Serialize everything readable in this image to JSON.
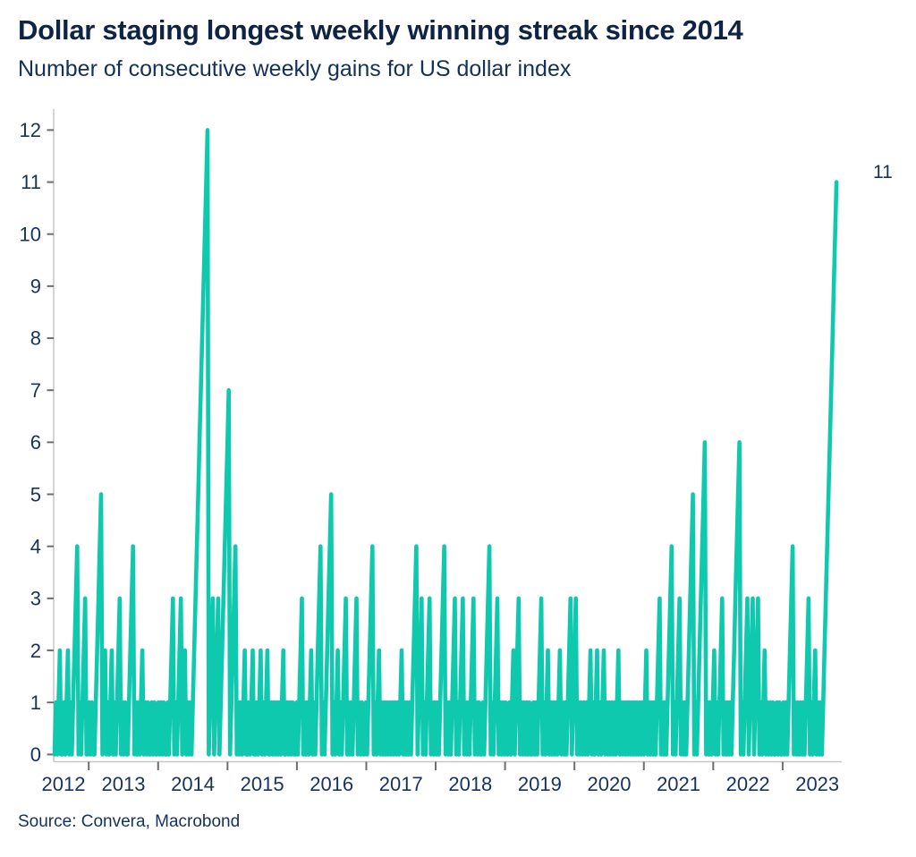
{
  "header": {
    "title": "Dollar staging longest weekly winning streak since 2014",
    "subtitle": "Number of consecutive weekly gains for US dollar index"
  },
  "footer": {
    "source": "Source: Convera, Macrobond"
  },
  "colors": {
    "line": "#0fc9af",
    "title_text": "#0f2444",
    "axis_text": "#17335d",
    "axis_line": "#c7c7c7",
    "tick_mark": "#6e6e6e",
    "background": "#ffffff"
  },
  "chart_data": {
    "type": "line",
    "title": "Dollar staging longest weekly winning streak since 2014",
    "subtitle": "Number of consecutive weekly gains for US dollar index",
    "series_name": "Consecutive weekly gains, US dollar index",
    "frequency": "weekly",
    "x_start": "2012-07",
    "x_end": "2023-09",
    "ylim": [
      0,
      12
    ],
    "grid": false,
    "legend": "none",
    "y_ticks": [
      0,
      1,
      2,
      3,
      4,
      5,
      6,
      7,
      8,
      9,
      10,
      11,
      12
    ],
    "x_year_boundaries": [
      2013,
      2014,
      2015,
      2016,
      2017,
      2018,
      2019,
      2020,
      2021,
      2022,
      2023
    ],
    "x_year_labels": [
      "2012",
      "2013",
      "2014",
      "2015",
      "2016",
      "2017",
      "2018",
      "2019",
      "2020",
      "2021",
      "2022",
      "2023"
    ],
    "annotation": {
      "text": "11",
      "value": 11,
      "position": "right-of-final-peak"
    },
    "notable_peaks": [
      {
        "period": "2012",
        "streak": 4
      },
      {
        "period": "2013",
        "streak": 5
      },
      {
        "period": "2014",
        "streak": 12
      },
      {
        "period": "2014-15",
        "streak": 7
      },
      {
        "period": "2016",
        "streak": 5
      },
      {
        "period": "2021",
        "streak": 6
      },
      {
        "period": "2022",
        "streak": 6
      },
      {
        "period": "2023",
        "streak": 11
      }
    ],
    "runs_encoding": "Sequential weekly series. Each pair [gains, zeros] = streak rising 1,2,...,gains (one step per week), followed by that many weeks at 0. Final run ends at its peak (streak ongoing).",
    "runs": [
      [
        1,
        1
      ],
      [
        2,
        2
      ],
      [
        1,
        1
      ],
      [
        2,
        1
      ],
      [
        1,
        1
      ],
      [
        4,
        1
      ],
      [
        1,
        1
      ],
      [
        3,
        2
      ],
      [
        1,
        1
      ],
      [
        1,
        2
      ],
      [
        5,
        1
      ],
      [
        2,
        1
      ],
      [
        1,
        1
      ],
      [
        2,
        1
      ],
      [
        1,
        1
      ],
      [
        3,
        1
      ],
      [
        1,
        1
      ],
      [
        1,
        2
      ],
      [
        4,
        1
      ],
      [
        1,
        1
      ],
      [
        1,
        1
      ],
      [
        2,
        1
      ],
      [
        1,
        1
      ],
      [
        1,
        2
      ],
      [
        1,
        1
      ],
      [
        1,
        2
      ],
      [
        1,
        1
      ],
      [
        1,
        1
      ],
      [
        1,
        2
      ],
      [
        1,
        1
      ],
      [
        3,
        1
      ],
      [
        1,
        1
      ],
      [
        3,
        1
      ],
      [
        2,
        1
      ],
      [
        1,
        1
      ],
      [
        1,
        1
      ],
      [
        12,
        1
      ],
      [
        3,
        1
      ],
      [
        3,
        1
      ],
      [
        7,
        1
      ],
      [
        4,
        1
      ],
      [
        1,
        1
      ],
      [
        1,
        1
      ],
      [
        2,
        2
      ],
      [
        1,
        1
      ],
      [
        2,
        2
      ],
      [
        1,
        1
      ],
      [
        2,
        1
      ],
      [
        1,
        1
      ],
      [
        2,
        2
      ],
      [
        1,
        1
      ],
      [
        1,
        1
      ],
      [
        1,
        1
      ],
      [
        1,
        1
      ],
      [
        2,
        2
      ],
      [
        1,
        1
      ],
      [
        1,
        1
      ],
      [
        1,
        2
      ],
      [
        1,
        1
      ],
      [
        3,
        1
      ],
      [
        1,
        1
      ],
      [
        1,
        1
      ],
      [
        2,
        1
      ],
      [
        1,
        1
      ],
      [
        4,
        1
      ],
      [
        1,
        1
      ],
      [
        5,
        1
      ],
      [
        1,
        1
      ],
      [
        2,
        1
      ],
      [
        1,
        1
      ],
      [
        3,
        1
      ],
      [
        1,
        1
      ],
      [
        1,
        1
      ],
      [
        3,
        1
      ],
      [
        1,
        1
      ],
      [
        1,
        2
      ],
      [
        1,
        1
      ],
      [
        4,
        1
      ],
      [
        1,
        1
      ],
      [
        2,
        1
      ],
      [
        1,
        1
      ],
      [
        1,
        1
      ],
      [
        1,
        1
      ],
      [
        1,
        1
      ],
      [
        1,
        1
      ],
      [
        1,
        1
      ],
      [
        1,
        1
      ],
      [
        2,
        1
      ],
      [
        1,
        1
      ],
      [
        1,
        1
      ],
      [
        1,
        1
      ],
      [
        4,
        1
      ],
      [
        3,
        1
      ],
      [
        1,
        1
      ],
      [
        3,
        1
      ],
      [
        1,
        1
      ],
      [
        1,
        1
      ],
      [
        1,
        1
      ],
      [
        4,
        1
      ],
      [
        1,
        1
      ],
      [
        1,
        1
      ],
      [
        3,
        1
      ],
      [
        1,
        1
      ],
      [
        3,
        1
      ],
      [
        1,
        1
      ],
      [
        1,
        1
      ],
      [
        3,
        1
      ],
      [
        1,
        1
      ],
      [
        1,
        2
      ],
      [
        1,
        1
      ],
      [
        4,
        1
      ],
      [
        1,
        1
      ],
      [
        3,
        1
      ],
      [
        1,
        1
      ],
      [
        1,
        1
      ],
      [
        1,
        2
      ],
      [
        1,
        1
      ],
      [
        2,
        1
      ],
      [
        3,
        1
      ],
      [
        1,
        1
      ],
      [
        1,
        1
      ],
      [
        1,
        1
      ],
      [
        1,
        2
      ],
      [
        1,
        1
      ],
      [
        1,
        1
      ],
      [
        3,
        1
      ],
      [
        1,
        1
      ],
      [
        2,
        1
      ],
      [
        1,
        1
      ],
      [
        1,
        1
      ],
      [
        1,
        1
      ],
      [
        2,
        1
      ],
      [
        1,
        1
      ],
      [
        1,
        1
      ],
      [
        3,
        1
      ],
      [
        3,
        1
      ],
      [
        1,
        1
      ],
      [
        1,
        1
      ],
      [
        1,
        1
      ],
      [
        1,
        1
      ],
      [
        2,
        1
      ],
      [
        1,
        1
      ],
      [
        2,
        1
      ],
      [
        1,
        1
      ],
      [
        2,
        1
      ],
      [
        1,
        1
      ],
      [
        1,
        1
      ],
      [
        1,
        1
      ],
      [
        1,
        1
      ],
      [
        2,
        1
      ],
      [
        1,
        1
      ],
      [
        1,
        1
      ],
      [
        1,
        1
      ],
      [
        1,
        1
      ],
      [
        1,
        1
      ],
      [
        1,
        1
      ],
      [
        1,
        1
      ],
      [
        1,
        1
      ],
      [
        1,
        1
      ],
      [
        2,
        1
      ],
      [
        1,
        1
      ],
      [
        1,
        1
      ],
      [
        1,
        1
      ],
      [
        3,
        1
      ],
      [
        1,
        1
      ],
      [
        1,
        1
      ],
      [
        4,
        1
      ],
      [
        1,
        1
      ],
      [
        3,
        1
      ],
      [
        1,
        1
      ],
      [
        1,
        1
      ],
      [
        5,
        1
      ],
      [
        1,
        1
      ],
      [
        6,
        1
      ],
      [
        1,
        1
      ],
      [
        1,
        1
      ],
      [
        2,
        1
      ],
      [
        1,
        1
      ],
      [
        3,
        1
      ],
      [
        1,
        1
      ],
      [
        1,
        1
      ],
      [
        1,
        1
      ],
      [
        6,
        1
      ],
      [
        1,
        1
      ],
      [
        3,
        1
      ],
      [
        3,
        1
      ],
      [
        3,
        1
      ],
      [
        1,
        1
      ],
      [
        2,
        1
      ],
      [
        1,
        1
      ],
      [
        1,
        1
      ],
      [
        1,
        2
      ],
      [
        1,
        1
      ],
      [
        1,
        2
      ],
      [
        1,
        1
      ],
      [
        1,
        1
      ],
      [
        4,
        1
      ],
      [
        1,
        1
      ],
      [
        1,
        1
      ],
      [
        1,
        1
      ],
      [
        1,
        1
      ],
      [
        3,
        1
      ],
      [
        1,
        1
      ],
      [
        2,
        1
      ],
      [
        1,
        1
      ],
      [
        1,
        1
      ],
      [
        11,
        0
      ]
    ]
  }
}
